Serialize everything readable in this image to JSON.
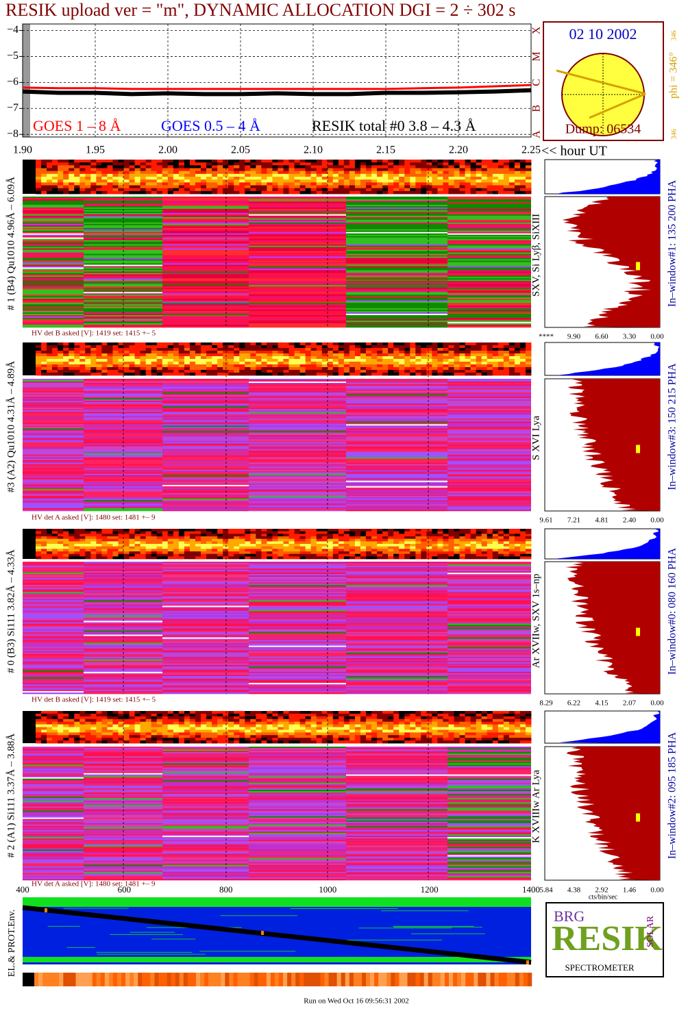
{
  "chart_data": {
    "type": "line",
    "title": "RESIK upload ver = \"m\", DYNAMIC ALLOCATION  DGI =   2 ÷ 302 s",
    "x_label": "<< hour UT",
    "x": [
      1.9,
      1.925,
      1.95,
      1.975,
      2.0,
      2.025,
      2.05,
      2.075,
      2.1,
      2.125,
      2.15,
      2.175,
      2.2,
      2.225,
      2.25
    ],
    "series": [
      {
        "name": "GOES 1 – 8 Å",
        "color": "#ff0000",
        "values": [
          -6.2,
          -6.22,
          -6.22,
          -6.25,
          -6.25,
          -6.25,
          -6.25,
          -6.25,
          -6.25,
          -6.25,
          -6.25,
          -6.22,
          -6.2,
          -6.15,
          -6.1
        ]
      },
      {
        "name": "GOES 0.5 – 4 Å",
        "color": "#0000ff",
        "values": [
          null,
          null,
          null,
          null,
          null,
          null,
          null,
          null,
          null,
          null,
          null,
          null,
          null,
          null,
          null
        ]
      },
      {
        "name": "RESIK total #0  3.8 – 4.3 Å",
        "color": "#000000",
        "values": [
          -6.35,
          -6.4,
          -6.4,
          -6.45,
          -6.42,
          -6.45,
          -6.45,
          -6.42,
          -6.45,
          -6.45,
          -6.4,
          -6.4,
          -6.38,
          -6.35,
          -6.3
        ]
      }
    ],
    "xlim": [
      1.9,
      2.25
    ],
    "xticks": [
      {
        "value": 1.9,
        "label": "1.90"
      },
      1.95,
      {
        "value": 2.0,
        "label": "2.00"
      },
      2.05,
      {
        "value": 2.1,
        "label": "2.10"
      },
      2.15,
      {
        "value": 2.2,
        "label": "2.20"
      },
      2.25
    ],
    "ylim": [
      -8.1,
      -3.75
    ],
    "yticks": [
      {
        "value": -4,
        "label": "−4"
      },
      {
        "value": -5,
        "label": "−5"
      },
      {
        "value": -6,
        "label": "−6"
      },
      {
        "value": -7,
        "label": "−7"
      },
      {
        "value": -8,
        "label": "−8"
      }
    ],
    "grid": true
  },
  "goes_classes": [
    "X",
    "M",
    "C",
    "B",
    "A"
  ],
  "sun": {
    "date": "02 10 2002",
    "phi": "phi = 346°",
    "phi_small": "346",
    "phi_small_bottom": "346",
    "dump": "Dump: 06534"
  },
  "panels": [
    {
      "label": "# 1 (B4) Qu1010 4.96Å – 6.09Å",
      "hv": "HV det B asked [V]:  1419 set:  1415 +–    5",
      "lines": "SXV, Si Lyβ, SiXIII",
      "window": "In–window#1:  135 200 PHA",
      "hist_ticks": [
        "****",
        "9.90",
        "6.60",
        "3.30",
        "0.00"
      ]
    },
    {
      "label": "#3 (A2) Qu1010  4.31Å – 4.89Å",
      "hv": "HV det A asked [V]:  1480 set:  1481 +–    9",
      "lines": "S XVI Lya",
      "window": "In–window#3:  150 215 PHA",
      "hist_ticks": [
        "9.61",
        "7.21",
        "4.81",
        "2.40",
        "0.00"
      ]
    },
    {
      "label": "# 0 (B3) Si111  3.82Å – 4.33Å",
      "hv": "HV det B asked [V]:  1419 set:  1415 +–    5",
      "lines": "Ar XVIIw,  SXV  1s–np",
      "window": "In–window#0:  080 160 PHA",
      "hist_ticks": [
        "8.29",
        "6.22",
        "4.15",
        "2.07",
        "0.00"
      ]
    },
    {
      "label": "# 2 (A1) Si111  3.37Å – 3.88Å",
      "hv": "HV det A asked [V]:  1480 set:  1481 +–    9",
      "lines": "K XVIIIw  Ar Lya",
      "window": "In–window#2:  095 185 PHA",
      "hist_ticks": [
        "5.84",
        "4.38",
        "2.92",
        "1.46",
        "0.00"
      ]
    }
  ],
  "hist_unit": "cts/bin/sec",
  "channel_ticks": [
    "400",
    "600",
    "800",
    "1000",
    "1200",
    "1400"
  ],
  "env_label": "EL.& PROT.Env.",
  "logo": {
    "big": "RESIK",
    "top": "BRG",
    "side": "SOLAR",
    "bottom": "SPECTROMETER"
  },
  "footer": "Run on Wed Oct 16 09:56:31 2002"
}
